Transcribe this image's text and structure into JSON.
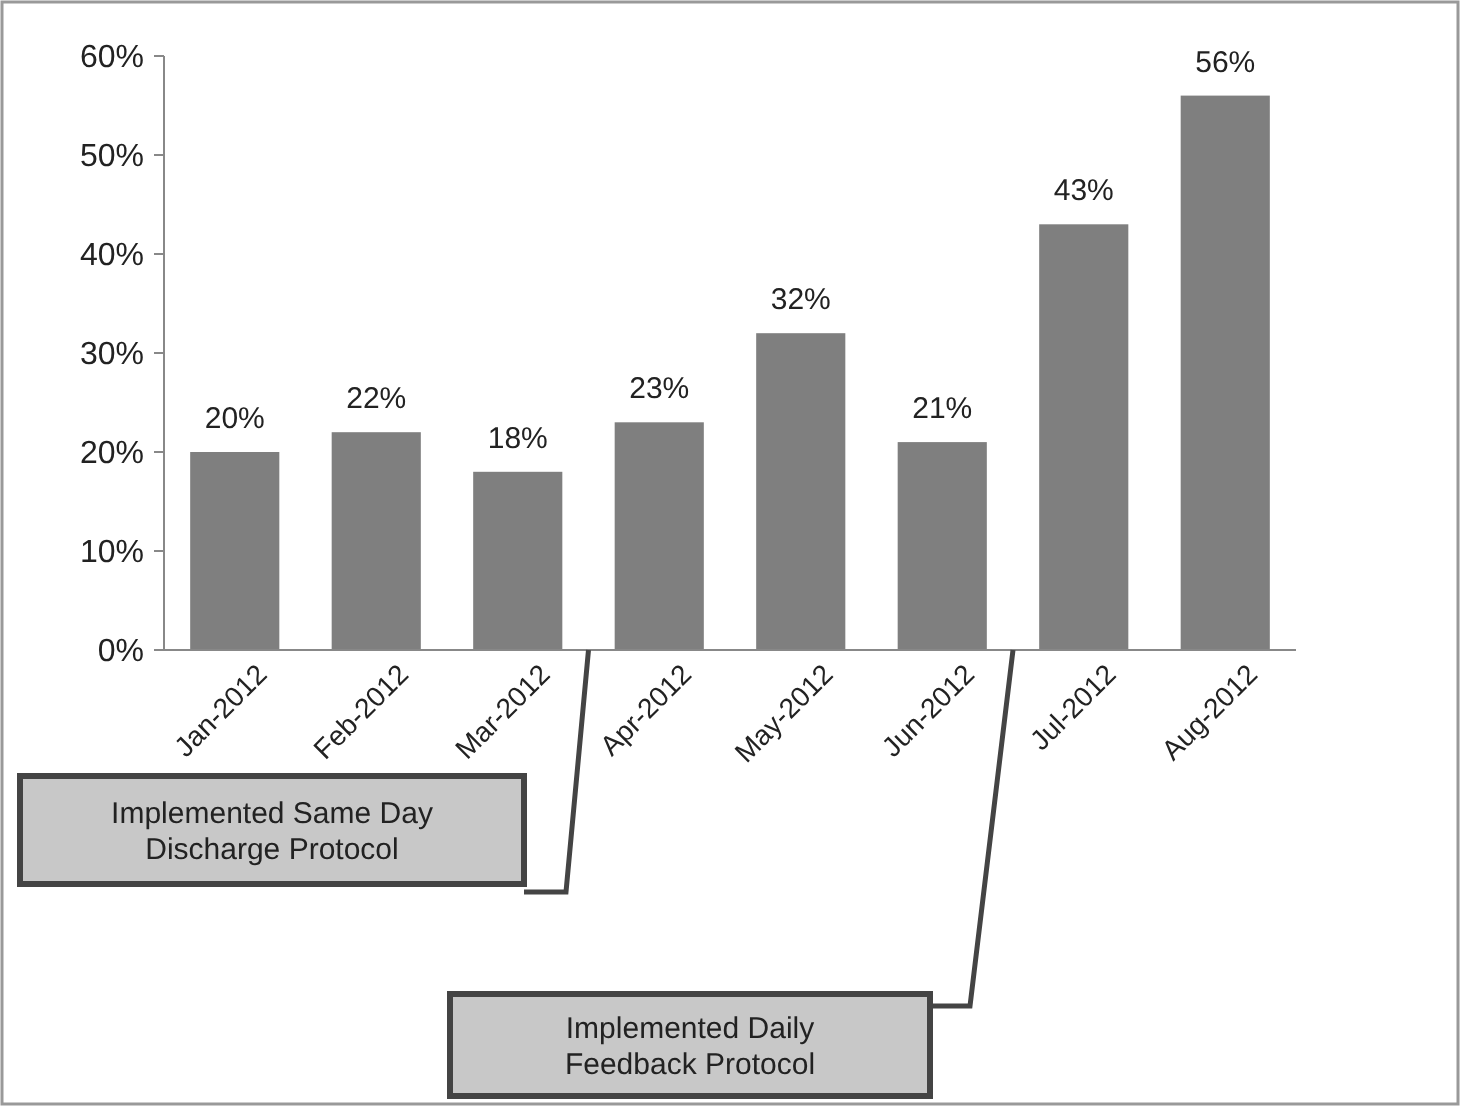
{
  "chart_data": {
    "type": "bar",
    "categories": [
      "Jan-2012",
      "Feb-2012",
      "Mar-2012",
      "Apr-2012",
      "May-2012",
      "Jun-2012",
      "Jul-2012",
      "Aug-2012"
    ],
    "values": [
      20,
      22,
      18,
      23,
      32,
      21,
      43,
      56
    ],
    "value_labels": [
      "20%",
      "22%",
      "18%",
      "23%",
      "32%",
      "21%",
      "43%",
      "56%"
    ],
    "color": "#7f7f7f",
    "ylim": [
      0,
      60
    ],
    "yticks": [
      {
        "value": 0,
        "label": "0%"
      },
      {
        "value": 10,
        "label": "10%"
      },
      {
        "value": 20,
        "label": "20%"
      },
      {
        "value": 30,
        "label": "30%"
      },
      {
        "value": 40,
        "label": "40%"
      },
      {
        "value": 50,
        "label": "50%"
      },
      {
        "value": 60,
        "label": "60%"
      }
    ],
    "grid": false,
    "annotations": [
      "Implemented Same Day Discharge Protocol",
      "Implemented Daily Feedback Protocol"
    ]
  }
}
